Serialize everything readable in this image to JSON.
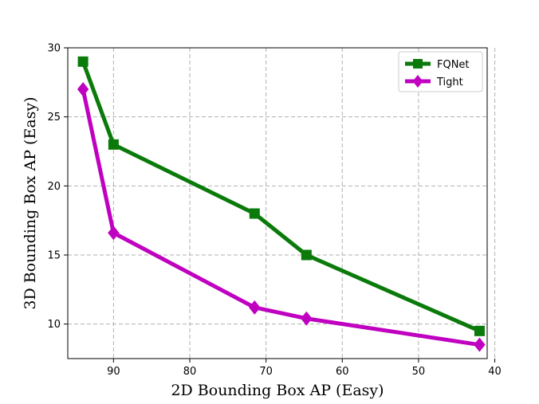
{
  "chart_data": {
    "type": "line",
    "title": "",
    "xlabel": "2D Bounding Box AP (Easy)",
    "ylabel": "3D Bounding Box AP (Easy)",
    "xlim": [
      96,
      41
    ],
    "ylim": [
      7.5,
      30
    ],
    "x_inverted": true,
    "xticks": [
      90,
      80,
      70,
      60,
      50,
      40
    ],
    "yticks": [
      10,
      15,
      20,
      25,
      30
    ],
    "grid": true,
    "legend_position": "top-right",
    "series": [
      {
        "name": "FQNet",
        "color": "#0a7a0a",
        "marker": "square",
        "x": [
          94,
          90,
          71.5,
          64.7,
          42
        ],
        "y": [
          29,
          23,
          18,
          15,
          9.5
        ]
      },
      {
        "name": "Tight",
        "color": "#c000c0",
        "marker": "diamond",
        "x": [
          94,
          90,
          71.5,
          64.7,
          42
        ],
        "y": [
          27,
          16.6,
          11.2,
          10.4,
          8.5
        ]
      }
    ]
  }
}
